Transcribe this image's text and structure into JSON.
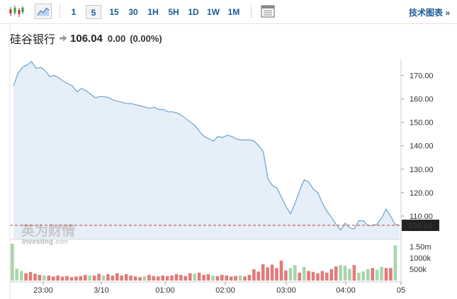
{
  "toolbar": {
    "timeframes": [
      "1",
      "5",
      "15",
      "30",
      "1H",
      "5H",
      "1D",
      "1W",
      "1M"
    ],
    "active_timeframe": "5",
    "tech_chart_link": "技术图表 »"
  },
  "quote": {
    "name": "硅谷银行",
    "price": "106.04",
    "change": "0.00",
    "change_pct": "(0.00%)"
  },
  "watermark": {
    "chinese": "英为财情",
    "english": "Investing",
    "suffix": ".com"
  },
  "colors": {
    "line": "#6aa3d0",
    "area": "#e6eef8",
    "up_volume": "#a8d5ab",
    "down_volume": "#e27a7a",
    "price_label_bg": "#222222",
    "dashed_line": "#c0392b"
  },
  "chart_data": {
    "type": "line",
    "price_axis": {
      "min": 100,
      "max": 175,
      "ticks": [
        "170.00",
        "160.00",
        "150.00",
        "140.00",
        "130.00",
        "120.00",
        "110.00"
      ]
    },
    "last_price_label": "106.04",
    "volume_axis": {
      "ticks": [
        "1.50m",
        "1000k",
        "500k"
      ]
    },
    "x_ticks": [
      "23:00",
      "3/10",
      "01:00",
      "02:00",
      "03:00",
      "04:00",
      "05"
    ],
    "price": [
      165.5,
      171,
      173.5,
      174.5,
      176,
      173,
      173.5,
      172,
      169.5,
      170,
      169,
      167.5,
      166.5,
      165.5,
      163,
      164.5,
      163.5,
      162,
      160.5,
      161,
      161,
      160.5,
      159.5,
      159,
      158.5,
      158,
      158,
      157.5,
      157,
      156.5,
      156,
      156.5,
      155.5,
      155.5,
      154.5,
      154.5,
      154,
      153,
      151.5,
      150,
      148.5,
      146,
      144,
      143,
      142,
      144,
      143.5,
      144.5,
      144,
      143,
      142.5,
      142.5,
      142.5,
      142,
      140,
      137.5,
      126,
      123,
      122,
      118,
      114,
      111,
      115.5,
      121,
      125.5,
      124.5,
      121.5,
      120,
      115.5,
      112,
      109.5,
      106.5,
      104,
      107,
      105,
      104.5,
      108,
      108,
      106,
      106,
      106.5,
      109,
      113,
      110,
      106.5,
      106.04
    ],
    "volume": [
      {
        "v": 1.62,
        "dir": "up"
      },
      {
        "v": 0.52,
        "dir": "up"
      },
      {
        "v": 0.42,
        "dir": "up"
      },
      {
        "v": 0.32,
        "dir": "down"
      },
      {
        "v": 0.38,
        "dir": "down"
      },
      {
        "v": 0.3,
        "dir": "down"
      },
      {
        "v": 0.25,
        "dir": "down"
      },
      {
        "v": 0.22,
        "dir": "up"
      },
      {
        "v": 0.22,
        "dir": "down"
      },
      {
        "v": 0.18,
        "dir": "down"
      },
      {
        "v": 0.22,
        "dir": "down"
      },
      {
        "v": 0.17,
        "dir": "down"
      },
      {
        "v": 0.2,
        "dir": "down"
      },
      {
        "v": 0.15,
        "dir": "down"
      },
      {
        "v": 0.18,
        "dir": "down"
      },
      {
        "v": 0.2,
        "dir": "down"
      },
      {
        "v": 0.25,
        "dir": "down"
      },
      {
        "v": 0.22,
        "dir": "up"
      },
      {
        "v": 0.22,
        "dir": "down"
      },
      {
        "v": 0.3,
        "dir": "down"
      },
      {
        "v": 0.22,
        "dir": "up"
      },
      {
        "v": 0.28,
        "dir": "down"
      },
      {
        "v": 0.22,
        "dir": "down"
      },
      {
        "v": 0.32,
        "dir": "down"
      },
      {
        "v": 0.22,
        "dir": "down"
      },
      {
        "v": 0.28,
        "dir": "down"
      },
      {
        "v": 0.22,
        "dir": "down"
      },
      {
        "v": 0.18,
        "dir": "down"
      },
      {
        "v": 0.15,
        "dir": "down"
      },
      {
        "v": 0.2,
        "dir": "up"
      },
      {
        "v": 0.25,
        "dir": "down"
      },
      {
        "v": 0.2,
        "dir": "down"
      },
      {
        "v": 0.18,
        "dir": "down"
      },
      {
        "v": 0.22,
        "dir": "down"
      },
      {
        "v": 0.2,
        "dir": "down"
      },
      {
        "v": 0.22,
        "dir": "down"
      },
      {
        "v": 0.28,
        "dir": "down"
      },
      {
        "v": 0.25,
        "dir": "down"
      },
      {
        "v": 0.2,
        "dir": "down"
      },
      {
        "v": 0.32,
        "dir": "down"
      },
      {
        "v": 0.3,
        "dir": "up"
      },
      {
        "v": 0.35,
        "dir": "down"
      },
      {
        "v": 0.25,
        "dir": "down"
      },
      {
        "v": 0.28,
        "dir": "down"
      },
      {
        "v": 0.22,
        "dir": "up"
      },
      {
        "v": 0.2,
        "dir": "down"
      },
      {
        "v": 0.25,
        "dir": "down"
      },
      {
        "v": 0.22,
        "dir": "down"
      },
      {
        "v": 0.18,
        "dir": "down"
      },
      {
        "v": 0.2,
        "dir": "down"
      },
      {
        "v": 0.22,
        "dir": "up"
      },
      {
        "v": 0.18,
        "dir": "down"
      },
      {
        "v": 0.25,
        "dir": "down"
      },
      {
        "v": 0.5,
        "dir": "down"
      },
      {
        "v": 0.4,
        "dir": "down"
      },
      {
        "v": 0.72,
        "dir": "down"
      },
      {
        "v": 0.58,
        "dir": "down"
      },
      {
        "v": 0.7,
        "dir": "down"
      },
      {
        "v": 0.55,
        "dir": "down"
      },
      {
        "v": 0.88,
        "dir": "down"
      },
      {
        "v": 0.45,
        "dir": "down"
      },
      {
        "v": 0.55,
        "dir": "up"
      },
      {
        "v": 0.68,
        "dir": "up"
      },
      {
        "v": 0.35,
        "dir": "down"
      },
      {
        "v": 0.6,
        "dir": "up"
      },
      {
        "v": 0.42,
        "dir": "down"
      },
      {
        "v": 0.38,
        "dir": "down"
      },
      {
        "v": 0.32,
        "dir": "down"
      },
      {
        "v": 0.42,
        "dir": "down"
      },
      {
        "v": 0.35,
        "dir": "down"
      },
      {
        "v": 0.5,
        "dir": "down"
      },
      {
        "v": 0.62,
        "dir": "down"
      },
      {
        "v": 0.68,
        "dir": "up"
      },
      {
        "v": 0.65,
        "dir": "up"
      },
      {
        "v": 0.52,
        "dir": "up"
      },
      {
        "v": 0.68,
        "dir": "down"
      },
      {
        "v": 0.35,
        "dir": "up"
      },
      {
        "v": 0.4,
        "dir": "up"
      },
      {
        "v": 0.5,
        "dir": "up"
      },
      {
        "v": 0.55,
        "dir": "down"
      },
      {
        "v": 0.48,
        "dir": "up"
      },
      {
        "v": 0.6,
        "dir": "up"
      },
      {
        "v": 0.55,
        "dir": "down"
      },
      {
        "v": 0.55,
        "dir": "down"
      },
      {
        "v": 1.55,
        "dir": "up"
      }
    ]
  }
}
